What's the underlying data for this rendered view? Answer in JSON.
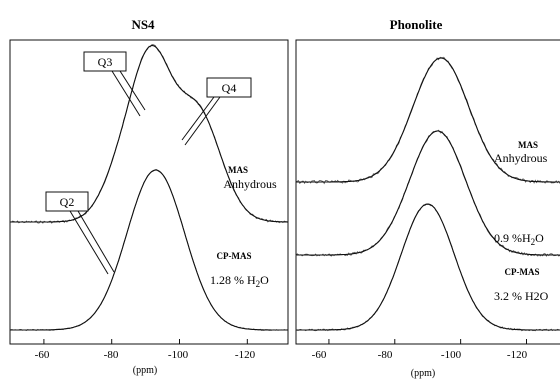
{
  "panels": [
    {
      "title": "NS4",
      "xlabel": "(ppm)",
      "xticks": [
        "-60",
        "-80",
        "-100",
        "-120"
      ],
      "spectra": [
        {
          "type_label": "MAS",
          "condition_label": "Anhydrous"
        },
        {
          "type_label": "CP-MAS",
          "condition_label": "1.28 % H",
          "condition_sub": "2",
          "condition_suffix": "O"
        }
      ],
      "callouts": [
        "Q3",
        "Q4",
        "Q2"
      ]
    },
    {
      "title": "Phonolite",
      "xlabel": "(ppm)",
      "xticks": [
        "-60",
        "-80",
        "-100",
        "-120"
      ],
      "spectra": [
        {
          "type_label": "MAS",
          "condition_label": "Anhydrous"
        },
        {
          "condition_label": "0.9 %H",
          "condition_sub": "2",
          "condition_suffix": "O"
        },
        {
          "type_label": "CP-MAS",
          "condition_label": "3.2 % H2O"
        }
      ]
    }
  ],
  "chart_data": [
    {
      "type": "line",
      "title": "NS4",
      "xlabel": "(ppm)",
      "xlim": [
        -50,
        -132
      ],
      "x_ticks": [
        -60,
        -80,
        -100,
        -120
      ],
      "series": [
        {
          "name": "MAS Anhydrous",
          "peaks": [
            {
              "label": "Q2",
              "position": -84,
              "relative_height": 0.45
            },
            {
              "label": "Q3",
              "position": -92,
              "relative_height": 1.0
            },
            {
              "label": "Q4",
              "position": -105,
              "relative_height": 0.85
            }
          ]
        },
        {
          "name": "CP-MAS 1.28 % H2O",
          "peaks": [
            {
              "position": -93,
              "relative_height": 1.0
            }
          ]
        }
      ]
    },
    {
      "type": "line",
      "title": "Phonolite",
      "xlabel": "(ppm)",
      "xlim": [
        -50,
        -132
      ],
      "x_ticks": [
        -60,
        -80,
        -100,
        -120
      ],
      "series": [
        {
          "name": "MAS Anhydrous",
          "peaks": [
            {
              "position": -94,
              "relative_height": 1.0
            }
          ]
        },
        {
          "name": "0.9 %H2O",
          "peaks": [
            {
              "position": -93,
              "relative_height": 1.0
            }
          ]
        },
        {
          "name": "CP-MAS 3.2 % H2O",
          "peaks": [
            {
              "position": -90,
              "relative_height": 1.0
            }
          ]
        }
      ]
    }
  ]
}
